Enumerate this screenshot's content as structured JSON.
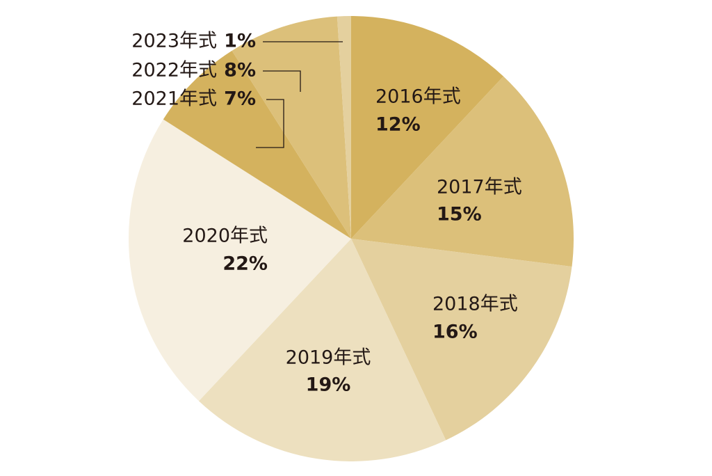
{
  "chart_data": {
    "type": "pie",
    "categories": [
      "2016年式",
      "2017年式",
      "2018年式",
      "2019年式",
      "2020年式",
      "2021年式",
      "2022年式",
      "2023年式"
    ],
    "values": [
      12,
      15,
      16,
      19,
      22,
      7,
      8,
      1
    ],
    "value_labels": [
      "12%",
      "15%",
      "16%",
      "19%",
      "22%",
      "7%",
      "8%",
      "1%"
    ],
    "colors": [
      "#d4b25e",
      "#dcc07a",
      "#e4d09e",
      "#ede0bf",
      "#f6efe0",
      "#d4b25e",
      "#dcc07a",
      "#e4d09e"
    ]
  }
}
